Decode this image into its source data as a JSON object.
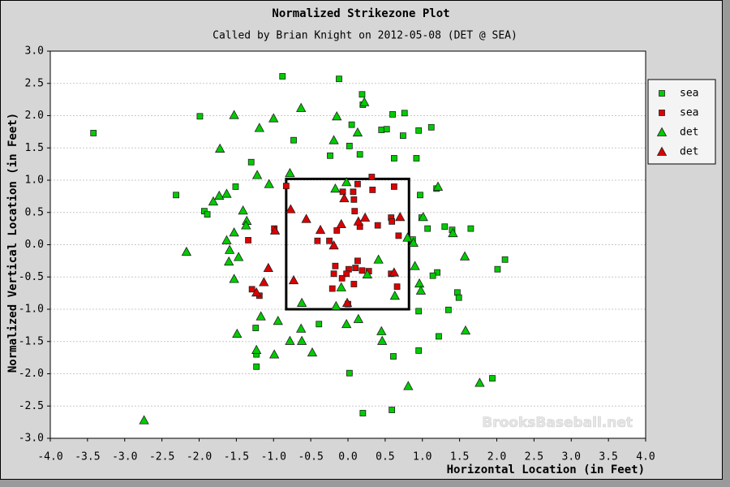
{
  "chart_data": {
    "type": "scatter",
    "title": "Normalized Strikezone Plot",
    "subtitle": "Called by Brian Knight on 2012-05-08 (DET @ SEA)",
    "x_label": "Horizontal Location (in Feet)",
    "y_label": "Normalized Vertical Location (in Feet)",
    "watermark": "BrooksBaseball.net",
    "xlim": [
      -4.0,
      4.0
    ],
    "ylim": [
      -3.0,
      3.0
    ],
    "xticks": [
      {
        "value": -4,
        "label": "-4.0"
      },
      {
        "value": -3.5,
        "label": "-3.5"
      },
      {
        "value": -3,
        "label": "-3.0"
      },
      {
        "value": -2.5,
        "label": "-2.5"
      },
      {
        "value": -2,
        "label": "-2.0"
      },
      {
        "value": -1.5,
        "label": "-1.5"
      },
      {
        "value": -1,
        "label": "-1.0"
      },
      {
        "value": -0.5,
        "label": "-0.5"
      },
      {
        "value": 0,
        "label": "0.0"
      },
      {
        "value": 0.5,
        "label": "0.5"
      },
      {
        "value": 1,
        "label": "1.0"
      },
      {
        "value": 1.5,
        "label": "1.5"
      },
      {
        "value": 2,
        "label": "2.0"
      },
      {
        "value": 2.5,
        "label": "2.5"
      },
      {
        "value": 3,
        "label": "3.0"
      },
      {
        "value": 3.5,
        "label": "3.5"
      },
      {
        "value": 4,
        "label": "4.0"
      }
    ],
    "yticks": [
      {
        "value": -3,
        "label": "-3.0"
      },
      {
        "value": -2.5,
        "label": "-2.5"
      },
      {
        "value": -2,
        "label": "-2.0"
      },
      {
        "value": -1.5,
        "label": "-1.5"
      },
      {
        "value": -1,
        "label": "-1.0"
      },
      {
        "value": -0.5,
        "label": "-0.5"
      },
      {
        "value": 0,
        "label": "0.0"
      },
      {
        "value": 0.5,
        "label": "0.5"
      },
      {
        "value": 1,
        "label": "1.0"
      },
      {
        "value": 1.5,
        "label": "1.5"
      },
      {
        "value": 2,
        "label": "2.0"
      },
      {
        "value": 2.5,
        "label": "2.5"
      },
      {
        "value": 3,
        "label": "3.0"
      }
    ],
    "grid": true,
    "legend": "upper-right",
    "strike_zone": {
      "left": -0.83,
      "right": 0.82,
      "bottom": -1.0,
      "top": 1.02
    },
    "series": [
      {
        "name": "sea",
        "color": "#00cc00",
        "marker": "square",
        "x": [
          -3.42,
          -0.88,
          -0.12,
          0.19,
          0.2,
          0.6,
          0.76,
          -1.99,
          0.05,
          0.45,
          0.52,
          0.95,
          1.12,
          0.74,
          -0.73,
          0.02,
          -0.24,
          0.16,
          0.62,
          0.92,
          -1.3,
          -1.51,
          -2.31,
          -1.93,
          -1.89,
          0.97,
          1.19,
          0.99,
          1.07,
          1.3,
          1.4,
          1.65,
          0.87,
          1.2,
          1.14,
          1.47,
          1.49,
          2.01,
          2.11,
          0.95,
          1.35,
          1.22,
          -0.39,
          -1.24,
          -1.23,
          -1.23,
          0.02,
          0.61,
          0.95,
          1.94,
          0.2,
          0.59
        ],
        "values": [
          1.73,
          2.61,
          2.57,
          2.33,
          2.17,
          2.02,
          2.04,
          1.99,
          1.86,
          1.78,
          1.79,
          1.77,
          1.82,
          1.69,
          1.62,
          1.53,
          1.38,
          1.4,
          1.34,
          1.34,
          1.28,
          0.9,
          0.77,
          0.52,
          0.47,
          0.77,
          0.87,
          0.42,
          0.25,
          0.28,
          0.23,
          0.25,
          0.08,
          -0.43,
          -0.48,
          -0.74,
          -0.82,
          -0.38,
          -0.23,
          -1.03,
          -1.01,
          -1.42,
          -1.23,
          -1.29,
          -1.7,
          -1.89,
          -1.99,
          -1.73,
          -1.64,
          -2.07,
          -2.61,
          -2.56
        ]
      },
      {
        "name": "sea",
        "color": "#dd0000",
        "marker": "square",
        "x": [
          -0.83,
          -0.07,
          0.07,
          0.32,
          0.13,
          0.33,
          0.09,
          0.62,
          0.08,
          0.58,
          0.4,
          0.59,
          0.68,
          0.16,
          -0.25,
          -0.41,
          -0.15,
          -0.17,
          0.13,
          0.01,
          0.1,
          0.19,
          0.28,
          -0.19,
          -0.02,
          -0.08,
          -0.21,
          0.08,
          0.0,
          -0.99,
          -1.34,
          -1.29,
          -1.19,
          0.66,
          0.58
        ],
        "values": [
          0.91,
          0.82,
          0.82,
          1.05,
          0.94,
          0.85,
          0.52,
          0.9,
          0.7,
          0.42,
          0.3,
          0.36,
          0.14,
          0.28,
          0.06,
          0.06,
          0.22,
          -0.33,
          -0.25,
          -0.38,
          -0.36,
          -0.4,
          -0.41,
          -0.45,
          -0.45,
          -0.52,
          -0.68,
          -0.61,
          -0.92,
          0.25,
          0.07,
          -0.69,
          -0.79,
          -0.65,
          -0.45
        ]
      },
      {
        "name": "det",
        "color": "#00cc00",
        "marker": "triangle",
        "x": [
          -1.53,
          -1.72,
          -1.19,
          -1.0,
          -0.63,
          -0.15,
          -0.19,
          0.13,
          0.22,
          -0.02,
          -0.17,
          -0.78,
          -1.06,
          -1.22,
          -1.63,
          -1.73,
          -1.81,
          -1.41,
          -1.36,
          -1.37,
          -1.53,
          -1.63,
          -1.59,
          -1.6,
          -1.47,
          -2.17,
          -1.53,
          -1.17,
          -0.94,
          -1.23,
          -0.99,
          -0.78,
          -0.62,
          -0.63,
          -0.48,
          -0.02,
          0.14,
          0.45,
          0.46,
          0.81,
          1.77,
          1.58,
          1.57,
          1.41,
          1.01,
          1.21,
          0.8,
          0.88,
          0.9,
          0.96,
          0.98,
          0.63,
          0.41,
          0.26,
          -0.09,
          -0.16,
          -0.62,
          -2.74,
          -1.49
        ],
        "values": [
          2.01,
          1.49,
          1.81,
          1.96,
          2.12,
          1.99,
          1.62,
          1.74,
          2.21,
          0.97,
          0.87,
          1.11,
          0.94,
          1.08,
          0.79,
          0.76,
          0.67,
          0.53,
          0.37,
          0.3,
          0.19,
          0.07,
          -0.08,
          -0.26,
          -0.19,
          -0.11,
          -0.53,
          -1.11,
          -1.18,
          -1.63,
          -1.7,
          -1.49,
          -1.49,
          -1.3,
          -1.67,
          -1.23,
          -1.15,
          -1.34,
          -1.49,
          -2.19,
          -2.14,
          -1.33,
          -0.18,
          0.18,
          0.43,
          0.9,
          0.11,
          0.03,
          -0.33,
          -0.6,
          -0.71,
          -0.79,
          -0.23,
          -0.46,
          -0.66,
          -0.95,
          -0.9,
          -2.72,
          -1.38
        ]
      },
      {
        "name": "det",
        "color": "#dd0000",
        "marker": "triangle",
        "x": [
          -1.07,
          -1.13,
          -0.73,
          -0.77,
          -0.56,
          -0.37,
          -0.19,
          0.7,
          0.23,
          -0.05,
          0.14,
          -0.98,
          -0.09,
          0.62,
          -0.01,
          -1.23
        ],
        "values": [
          -0.36,
          -0.58,
          -0.55,
          0.55,
          0.4,
          0.23,
          -0.01,
          0.43,
          0.42,
          0.72,
          0.36,
          0.22,
          0.32,
          -0.43,
          -0.9,
          -0.74
        ]
      }
    ]
  }
}
